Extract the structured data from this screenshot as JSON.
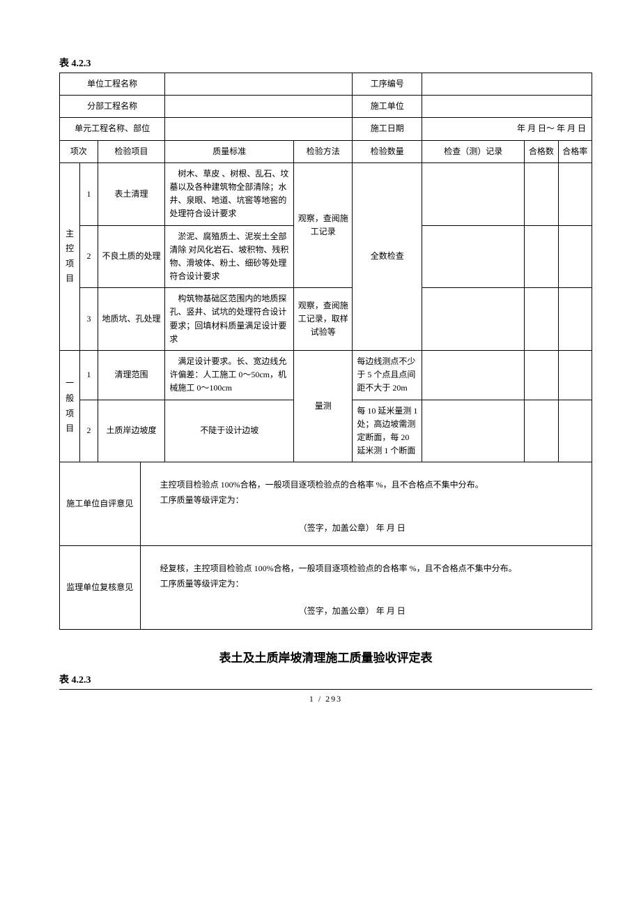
{
  "table_number": "表 4.2.3",
  "header": {
    "row1_label": "单位工程名称",
    "row1_right_label": "工序编号",
    "row2_label": "分部工程名称",
    "row2_right_label": "施工单位",
    "row3_label": "单元工程名称、部位",
    "row3_right_label": "施工日期",
    "row3_right_value": "年    月    日～    年    月    日"
  },
  "columns": {
    "c1": "项次",
    "c2": "检验项目",
    "c3": "质量标准",
    "c4": "检验方法",
    "c5": "检验数量",
    "c6": "检查（测）记录",
    "c7": "合格数",
    "c8": "合格率"
  },
  "section_a": {
    "label": "主控项目",
    "rows": [
      {
        "n": "1",
        "item": "表土清理",
        "standard": "树木、草皮       、树根、乱石、坟墓以及各种建筑物全部清除；水井、泉眼、地道、坑窖等地窖的处理符合设计要求",
        "method": "观察，查阅施工记录",
        "qty": "全数检查"
      },
      {
        "n": "2",
        "item": "不良土质的处理",
        "standard": "淤泥、腐殖质土、泥炭土全部清除 对风化岩石、坡积物、残积物、滑坡体、粉土、细砂等处理符合设计要求"
      },
      {
        "n": "3",
        "item": "地质坑、孔处理",
        "standard": "构筑物基础区范围内的地质探孔、竖井、试坑的处理符合设计要求；回填材料质量满足设计要求",
        "method": "观察，查阅施工记录，取样试验等"
      }
    ]
  },
  "section_b": {
    "label": "一般项目",
    "rows": [
      {
        "n": "1",
        "item": "清理范围",
        "standard": "满足设计要求。长、宽边线允许偏差：人工施工 0～50cm，机械施工 0～100cm",
        "method": "量测",
        "qty": "每边线测点不少于 5 个点且点间距不大于 20m"
      },
      {
        "n": "2",
        "item": "土质岸边坡度",
        "standard": "不陡于设计边坡",
        "qty": "每 10 延米量测 1 处；高边坡需测定断面，每 20 延米测 1 个断面"
      }
    ]
  },
  "footer": {
    "self_label": "施工单位自评意见",
    "self_text1": "主控项目检验点 100%合格，一般项目逐项检验点的合格率      %，且不合格点不集中分布。",
    "self_text2": "工序质量等级评定为：",
    "sig": "（签字，加盖公章）         年      月      日",
    "review_label": "监理单位复核意见",
    "review_text1": "经复核，主控项目检验点 100%合格，一般项目逐项检验点的合格率      %，且不合格点不集中分布。",
    "review_text2": "工序质量等级评定为："
  },
  "doc_title": "表土及土质岸坡清理施工质量验收评定表",
  "table_number_2": "表 4.2.3",
  "page": "1  /  293"
}
